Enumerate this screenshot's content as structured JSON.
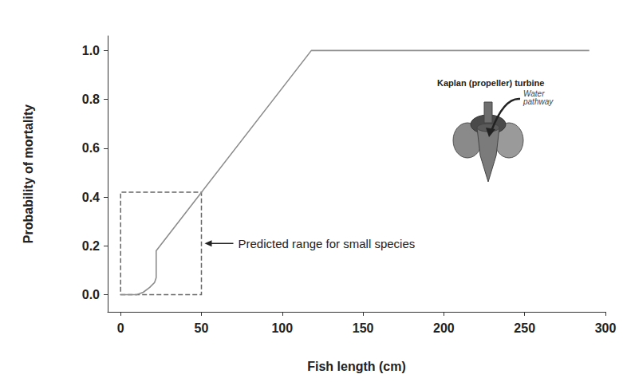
{
  "chart_data": {
    "type": "line",
    "x_label": "Fish length (cm)",
    "y_label": "Probability of mortality",
    "x": [
      0,
      5,
      10,
      14,
      18,
      21,
      22,
      22,
      118,
      290
    ],
    "values": [
      0,
      0,
      0,
      0.01,
      0.03,
      0.05,
      0.07,
      0.18,
      1.0,
      1.0
    ],
    "color": "#8c8c8c",
    "marker": "none",
    "line_style": "solid",
    "grid": false,
    "xlim": [
      -8,
      300
    ],
    "ylim": [
      -0.07,
      1.06
    ],
    "xticks": [
      0,
      50,
      100,
      150,
      200,
      250,
      300
    ],
    "yticks": [
      {
        "value": 0,
        "label": "0.0"
      },
      {
        "value": 0.2,
        "label": "0.2"
      },
      {
        "value": 0.4,
        "label": "0.4"
      },
      {
        "value": 0.6,
        "label": "0.6"
      },
      {
        "value": 0.8,
        "label": "0.8"
      },
      {
        "value": 1.0,
        "label": "1.0"
      }
    ],
    "regions": [
      {
        "label": "Predicted range for small species",
        "xlim": [
          0,
          50
        ],
        "ylim": [
          0,
          0.42
        ]
      }
    ],
    "inset": {
      "title": "Kaplan (propeller) turbine",
      "label": "Water pathway"
    }
  }
}
